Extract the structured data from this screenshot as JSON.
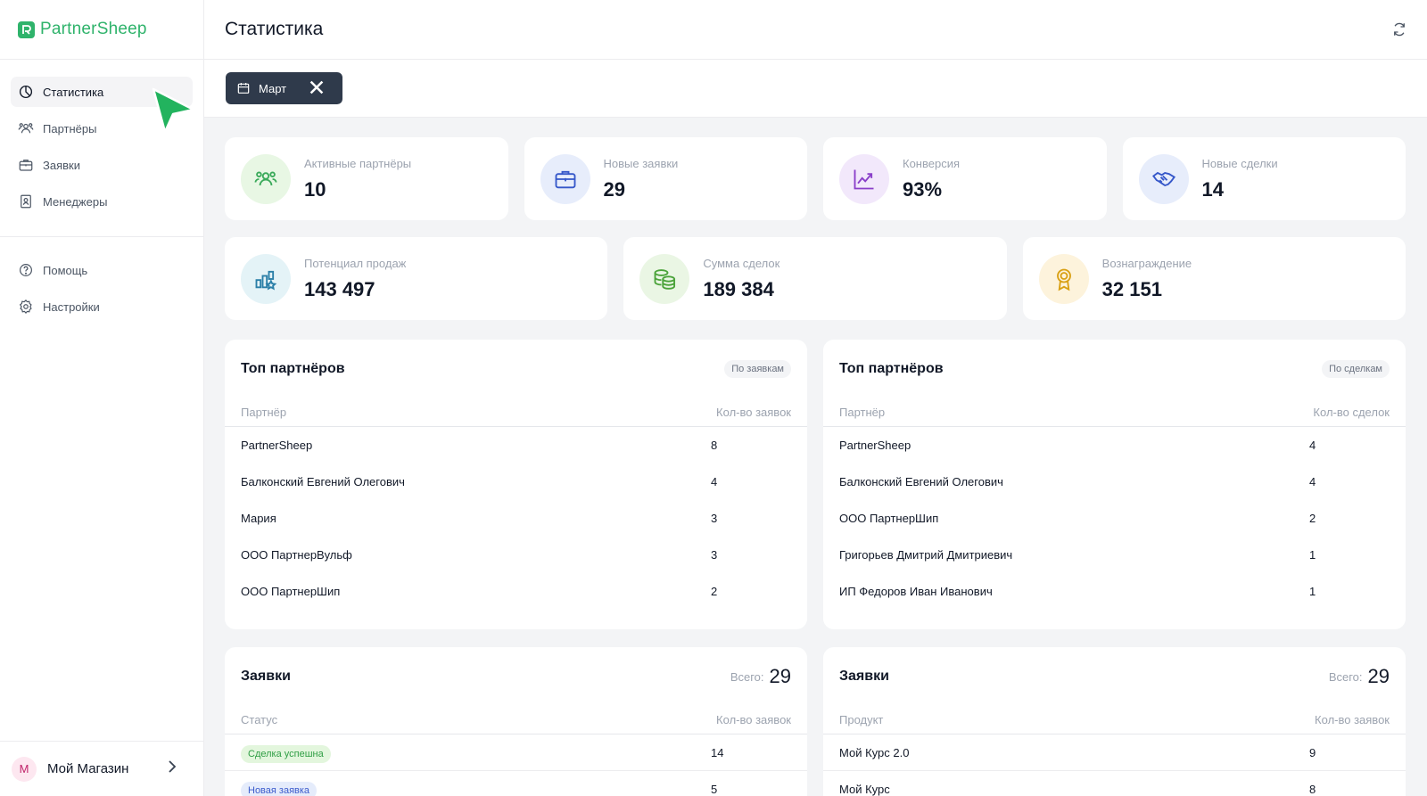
{
  "app": {
    "name": "PartnerSheep"
  },
  "sidebar": {
    "items": [
      {
        "label": "Статистика",
        "icon": "pie-chart-icon",
        "active": true
      },
      {
        "label": "Партнёры",
        "icon": "users-icon"
      },
      {
        "label": "Заявки",
        "icon": "briefcase-icon"
      },
      {
        "label": "Менеджеры",
        "icon": "badge-icon"
      }
    ],
    "secondary": [
      {
        "label": "Помощь",
        "icon": "help-circle-icon"
      },
      {
        "label": "Настройки",
        "icon": "gear-icon"
      }
    ],
    "account": {
      "initial": "М",
      "name": "Мой Магазин"
    }
  },
  "header": {
    "title": "Статистика"
  },
  "filter": {
    "label": "Март"
  },
  "stats": [
    {
      "label": "Активные партнёры",
      "value": "10",
      "icon": "partners-icon",
      "bg": "#e8f7e4",
      "color": "#3aaa5a"
    },
    {
      "label": "Новые заявки",
      "value": "29",
      "icon": "briefcase-icon",
      "bg": "#e7edfb",
      "color": "#3557c9"
    },
    {
      "label": "Конверсия",
      "value": "93%",
      "icon": "trend-up-icon",
      "bg": "#f2e8fb",
      "color": "#8a3fc9"
    },
    {
      "label": "Новые сделки",
      "value": "14",
      "icon": "handshake-icon",
      "bg": "#e7edfb",
      "color": "#3557c9"
    },
    {
      "label": "Потенциал продаж",
      "value": "143 497",
      "icon": "growth-icon",
      "bg": "#e4f3f7",
      "color": "#2a7fa8"
    },
    {
      "label": "Сумма сделок",
      "value": "189 384",
      "icon": "coins-icon",
      "bg": "#eaf6e4",
      "color": "#4ba33a"
    },
    {
      "label": "Вознаграждение",
      "value": "32 151",
      "icon": "award-icon",
      "bg": "#fdf3dc",
      "color": "#d9a014"
    }
  ],
  "top_by_requests": {
    "title": "Топ партнёров",
    "tag": "По заявкам",
    "col1": "Партнёр",
    "col2": "Кол-во заявок",
    "rows": [
      {
        "name": "PartnerSheep",
        "count": "8"
      },
      {
        "name": "Балконский Евгений Олегович",
        "count": "4"
      },
      {
        "name": "Мария",
        "count": "3"
      },
      {
        "name": "ООО ПартнерВульф",
        "count": "3"
      },
      {
        "name": "ООО ПартнерШип",
        "count": "2"
      }
    ]
  },
  "top_by_deals": {
    "title": "Топ партнёров",
    "tag": "По сделкам",
    "col1": "Партнёр",
    "col2": "Кол-во сделок",
    "rows": [
      {
        "name": "PartnerSheep",
        "count": "4"
      },
      {
        "name": "Балконский Евгений Олегович",
        "count": "4"
      },
      {
        "name": "ООО ПартнерШип",
        "count": "2"
      },
      {
        "name": "Григорьев Дмитрий Дмитриевич",
        "count": "1"
      },
      {
        "name": "ИП Федоров Иван Иванович",
        "count": "1"
      }
    ]
  },
  "requests_by_status": {
    "title": "Заявки",
    "total_label": "Всего:",
    "total_value": "29",
    "col1": "Статус",
    "col2": "Кол-во заявок",
    "rows": [
      {
        "status": "Сделка успешна",
        "count": "14",
        "color": "#2f9e44"
      },
      {
        "status": "Новая заявка",
        "count": "5",
        "color": "#3b5bcc"
      }
    ]
  },
  "requests_by_product": {
    "title": "Заявки",
    "total_label": "Всего:",
    "total_value": "29",
    "col1": "Продукт",
    "col2": "Кол-во заявок",
    "rows": [
      {
        "product": "Мой Курс 2.0",
        "count": "9"
      },
      {
        "product": "Мой Курс",
        "count": "8"
      }
    ]
  }
}
